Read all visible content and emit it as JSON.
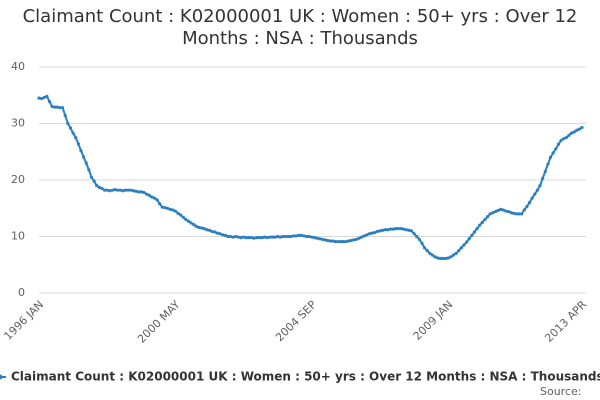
{
  "chart_data": {
    "type": "line",
    "title": "Claimant Count : K02000001 UK : Women : 50+ yrs : Over 12 Months : NSA : Thousands",
    "source_label": "Source:",
    "categories": [
      "1996 JAN",
      null,
      null,
      null,
      null,
      null,
      null,
      null,
      null,
      null,
      null,
      null,
      null,
      null,
      null,
      null,
      null,
      null,
      null,
      null,
      null,
      null,
      null,
      null,
      null,
      null,
      null,
      null,
      null,
      null,
      null,
      null,
      null,
      null,
      null,
      null,
      null,
      null,
      null,
      null,
      null,
      null,
      null,
      null,
      null,
      null,
      null,
      null,
      null,
      null,
      null,
      null,
      "2000 MAY",
      null,
      null,
      null,
      null,
      null,
      null,
      null,
      null,
      null,
      null,
      null,
      null,
      null,
      null,
      null,
      null,
      null,
      null,
      null,
      null,
      null,
      null,
      null,
      null,
      null,
      null,
      null,
      null,
      null,
      null,
      null,
      null,
      null,
      null,
      null,
      null,
      null,
      null,
      null,
      null,
      null,
      null,
      null,
      null,
      null,
      null,
      null,
      null,
      null,
      null,
      null,
      "2004 SEP",
      null,
      null,
      null,
      null,
      null,
      null,
      null,
      null,
      null,
      null,
      null,
      null,
      null,
      null,
      null,
      null,
      null,
      null,
      null,
      null,
      null,
      null,
      null,
      null,
      null,
      null,
      null,
      null,
      null,
      null,
      null,
      null,
      null,
      null,
      null,
      null,
      null,
      null,
      null,
      null,
      null,
      null,
      null,
      null,
      null,
      null,
      null,
      null,
      null,
      null,
      null,
      "2009 JAN",
      null,
      null,
      null,
      null,
      null,
      null,
      null,
      null,
      null,
      null,
      null,
      null,
      null,
      null,
      null,
      null,
      null,
      null,
      null,
      null,
      null,
      null,
      null,
      null,
      null,
      null,
      null,
      null,
      null,
      null,
      null,
      null,
      null,
      null,
      null,
      null,
      null,
      null,
      null,
      null,
      null,
      null,
      null,
      null,
      null,
      null,
      null,
      null,
      null,
      null,
      "2013 APR"
    ],
    "series": [
      {
        "name": "Claimant Count : K02000001 UK : Women : 50+ yrs : Over 12 Months : NSA : Thousands",
        "color": "#2b7fc0",
        "values": [
          34.5,
          34.4,
          34.6,
          34.8,
          33.9,
          33.0,
          32.9,
          32.9,
          32.8,
          32.8,
          31.4,
          30.0,
          29.2,
          28.3,
          27.5,
          26.4,
          25.2,
          24.1,
          23.0,
          21.8,
          20.5,
          19.8,
          19.0,
          18.7,
          18.5,
          18.2,
          18.2,
          18.1,
          18.2,
          18.3,
          18.2,
          18.2,
          18.1,
          18.2,
          18.2,
          18.2,
          18.1,
          18.0,
          17.9,
          17.9,
          17.8,
          17.5,
          17.3,
          17.0,
          16.8,
          16.5,
          15.8,
          15.2,
          15.1,
          15.0,
          14.8,
          14.7,
          14.5,
          14.1,
          13.8,
          13.4,
          13.0,
          12.7,
          12.4,
          12.1,
          11.8,
          11.6,
          11.5,
          11.4,
          11.2,
          11.1,
          10.9,
          10.8,
          10.6,
          10.5,
          10.3,
          10.2,
          10.0,
          10.0,
          9.9,
          10.0,
          9.9,
          9.8,
          9.9,
          9.8,
          9.8,
          9.8,
          9.7,
          9.8,
          9.8,
          9.8,
          9.9,
          9.8,
          9.9,
          9.9,
          9.9,
          10.0,
          9.9,
          10.0,
          10.0,
          10.0,
          10.0,
          10.1,
          10.1,
          10.2,
          10.2,
          10.1,
          10.0,
          10.0,
          9.9,
          9.8,
          9.7,
          9.6,
          9.5,
          9.4,
          9.3,
          9.2,
          9.2,
          9.1,
          9.1,
          9.1,
          9.1,
          9.1,
          9.2,
          9.3,
          9.4,
          9.5,
          9.7,
          9.9,
          10.1,
          10.3,
          10.5,
          10.6,
          10.7,
          10.9,
          11.0,
          11.1,
          11.2,
          11.2,
          11.3,
          11.3,
          11.4,
          11.4,
          11.4,
          11.3,
          11.2,
          11.1,
          11.0,
          10.5,
          10.0,
          9.5,
          8.8,
          8.0,
          7.5,
          7.0,
          6.7,
          6.4,
          6.2,
          6.1,
          6.1,
          6.1,
          6.2,
          6.4,
          6.7,
          7.0,
          7.5,
          8.0,
          8.5,
          9.0,
          9.6,
          10.2,
          10.8,
          11.4,
          12.0,
          12.5,
          13.0,
          13.5,
          14.0,
          14.2,
          14.4,
          14.6,
          14.8,
          14.7,
          14.5,
          14.4,
          14.2,
          14.1,
          14.0,
          14.0,
          14.0,
          14.7,
          15.3,
          16.0,
          16.8,
          17.5,
          18.2,
          19.0,
          20.3,
          21.5,
          22.8,
          24.0,
          24.8,
          25.5,
          26.3,
          27.0,
          27.3,
          27.5,
          27.9,
          28.3,
          28.5,
          28.8,
          29.0,
          29.3
        ]
      }
    ],
    "ylim": [
      0,
      40
    ],
    "yticks": [
      0,
      10,
      20,
      30,
      40
    ],
    "grid": true
  }
}
